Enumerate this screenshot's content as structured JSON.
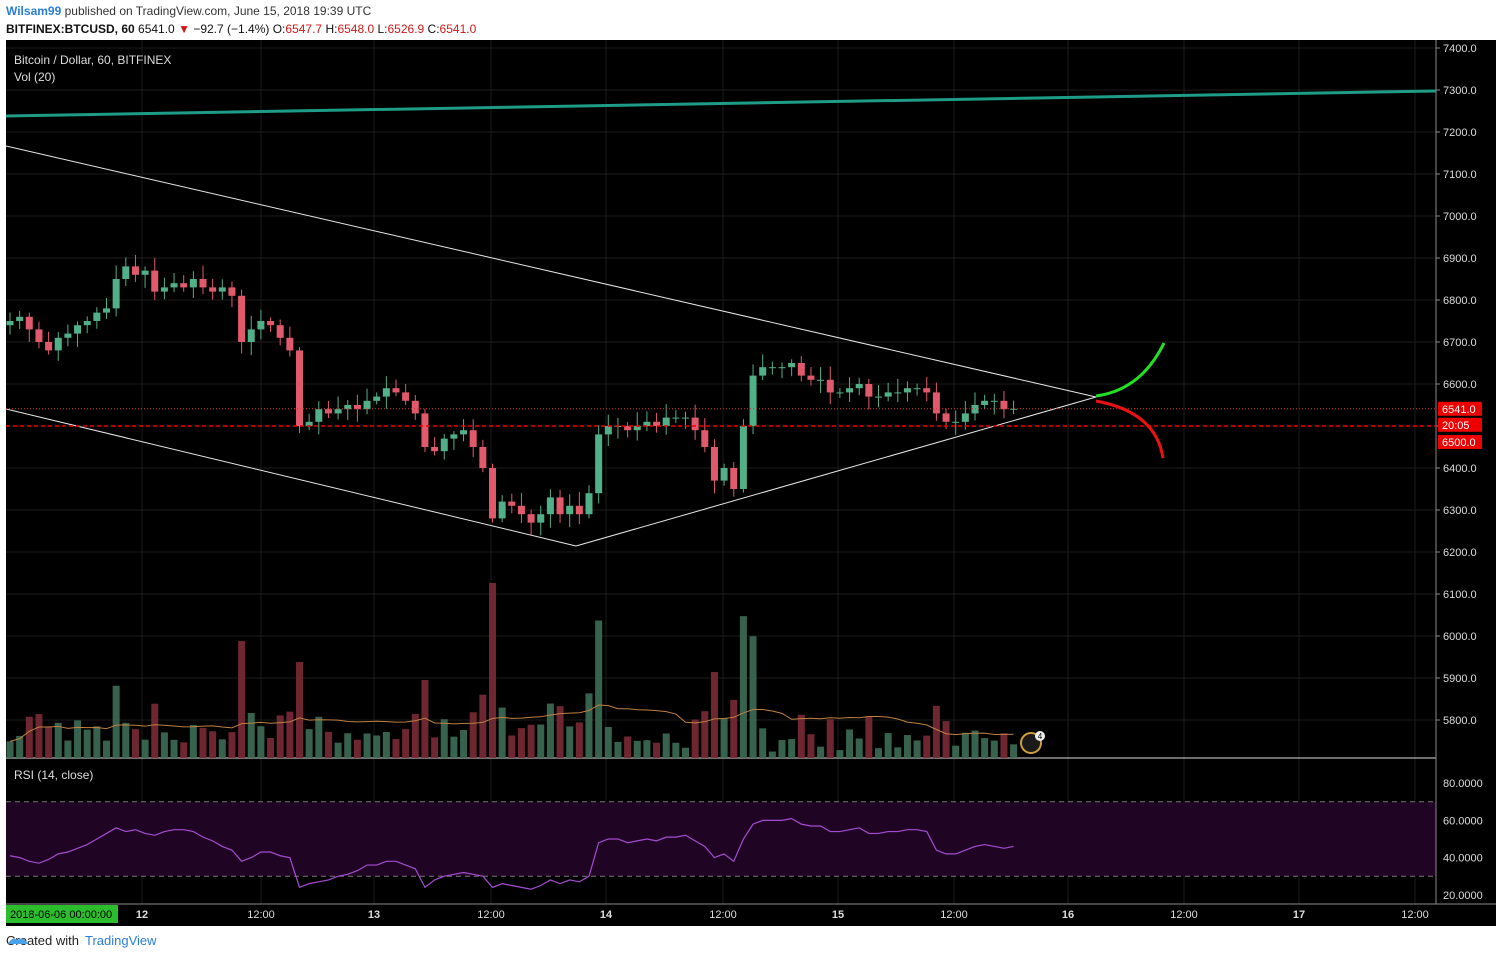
{
  "header": {
    "username": "Wilsam99",
    "published": "published on TradingView.com, June 15, 2018 19:39 UTC",
    "symbol": "BITFINEX:BTCUSD, 60",
    "last": "6541.0",
    "change_arrow": "▼",
    "change": "−92.7 (−1.4%)",
    "o_label": "O:",
    "o_val": "6547.7",
    "h_label": "H:",
    "h_val": "6548.0",
    "l_label": "L:",
    "l_val": "6526.9",
    "c_label": "C:",
    "c_val": "6541.0"
  },
  "legend": {
    "title": "Bitcoin / Dollar, 60, BITFINEX",
    "vol": "Vol (20)",
    "rsi": "RSI (14, close)",
    "flag_badge": "4"
  },
  "colors": {
    "up": "#52b089",
    "down": "#e15a6b",
    "background": "#000000",
    "grid": "#1c1c1c",
    "teal_line": "#1e9c86",
    "green_arrow": "#22e022",
    "red_arrow": "#ee1111",
    "rsi_line": "#a34cd1",
    "rsi_band": "#200424"
  },
  "chart_data": {
    "type": "candlestick",
    "title": "Bitcoin / Dollar, 60, BITFINEX",
    "y_ticks": [
      "7400.0",
      "7300.0",
      "7200.0",
      "7100.0",
      "7000.0",
      "6900.0",
      "6800.0",
      "6700.0",
      "6600.0",
      "6500.0",
      "6400.0",
      "6300.0",
      "6200.0",
      "6100.0",
      "6000.0",
      "5900.0",
      "5800.0"
    ],
    "ylim": [
      5740,
      7430
    ],
    "x_ticks": [
      "12",
      "12:00",
      "13",
      "12:00",
      "14",
      "12:00",
      "15",
      "12:00",
      "16",
      "12:00",
      "17",
      "12:00"
    ],
    "x_start_label": "2018-06-06 00:00:00",
    "price_labels": {
      "last": "6541.0",
      "countdown": "20:05",
      "level": "6500.0"
    },
    "closes": [
      6750,
      6760,
      6730,
      6700,
      6680,
      6710,
      6720,
      6740,
      6750,
      6770,
      6780,
      6850,
      6880,
      6860,
      6870,
      6820,
      6830,
      6840,
      6830,
      6850,
      6830,
      6820,
      6830,
      6810,
      6700,
      6730,
      6750,
      6740,
      6710,
      6680,
      6500,
      6510,
      6540,
      6530,
      6540,
      6550,
      6540,
      6560,
      6570,
      6590,
      6580,
      6560,
      6530,
      6450,
      6440,
      6470,
      6480,
      6490,
      6450,
      6400,
      6280,
      6320,
      6310,
      6290,
      6270,
      6290,
      6330,
      6290,
      6310,
      6290,
      6340,
      6480,
      6500,
      6500,
      6490,
      6500,
      6510,
      6500,
      6520,
      6520,
      6520,
      6490,
      6450,
      6370,
      6400,
      6350,
      6500,
      6620,
      6640,
      6640,
      6640,
      6650,
      6620,
      6610,
      6610,
      6580,
      6580,
      6590,
      6600,
      6570,
      6570,
      6580,
      6580,
      6590,
      6590,
      6580,
      6530,
      6510,
      6510,
      6530,
      6550,
      6560,
      6560,
      6540,
      6541
    ],
    "volume_indices": [
      0,
      1,
      2,
      3,
      4,
      5,
      6,
      7,
      8,
      9,
      10,
      11,
      12,
      13,
      14,
      15,
      16,
      17,
      18,
      19,
      20,
      21,
      22,
      23,
      24,
      25,
      26,
      27,
      28,
      29,
      30,
      31,
      32,
      33,
      34,
      35,
      36,
      37,
      38,
      39,
      40,
      41,
      42,
      43,
      44,
      45,
      46,
      47,
      48,
      49,
      50,
      51,
      52,
      53,
      54,
      55,
      56,
      57,
      58,
      59,
      60,
      61,
      62,
      63,
      64,
      65,
      66,
      67,
      68,
      69,
      70,
      71,
      72,
      73,
      74,
      75,
      76,
      77,
      78,
      79,
      80,
      81,
      82,
      83,
      84,
      85,
      86,
      87,
      88,
      89,
      90,
      91,
      92,
      93,
      94,
      95,
      96,
      97,
      98,
      99,
      100,
      101,
      102,
      103,
      104
    ],
    "rsi": {
      "ticks": [
        "80.0000",
        "60.0000",
        "40.0000",
        "20.0000"
      ],
      "levels": [
        30,
        70
      ],
      "values": [
        41,
        40,
        38,
        37,
        39,
        42,
        43,
        45,
        47,
        50,
        53,
        56,
        54,
        55,
        53,
        52,
        54,
        55,
        55,
        54,
        51,
        49,
        46,
        44,
        38,
        40,
        43,
        43,
        41,
        40,
        24,
        26,
        27,
        28,
        30,
        31,
        33,
        36,
        36,
        38,
        38,
        36,
        34,
        24,
        28,
        30,
        31,
        32,
        31,
        30,
        24,
        26,
        25,
        24,
        23,
        25,
        28,
        26,
        28,
        27,
        30,
        48,
        50,
        50,
        48,
        49,
        50,
        49,
        51,
        51,
        52,
        49,
        46,
        40,
        42,
        38,
        50,
        58,
        60,
        60,
        60,
        61,
        58,
        57,
        57,
        54,
        54,
        55,
        56,
        53,
        53,
        54,
        54,
        55,
        55,
        54,
        44,
        42,
        42,
        44,
        46,
        47,
        46,
        45,
        46
      ]
    }
  },
  "footer": {
    "created_with": "Created with",
    "brand": "TradingView"
  }
}
